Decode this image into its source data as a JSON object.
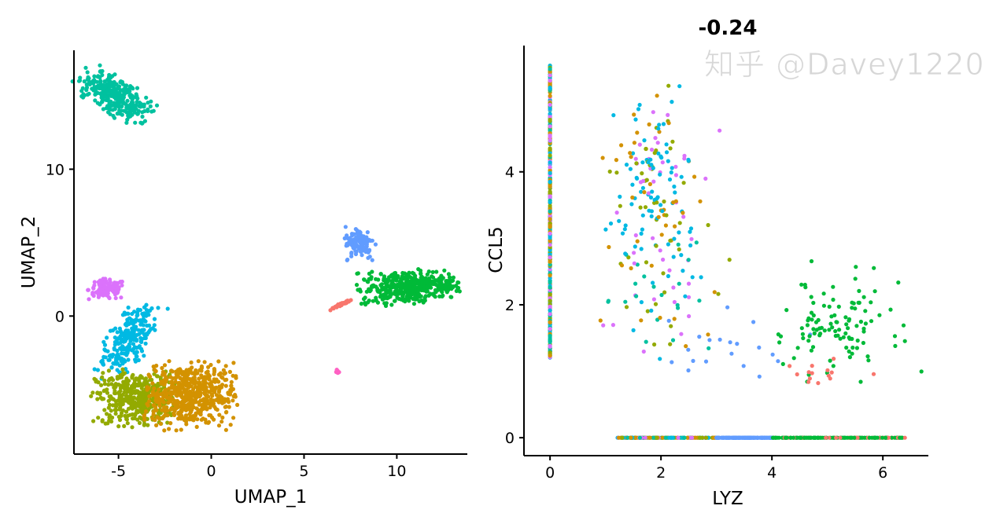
{
  "palette": [
    "#F8766D",
    "#D39200",
    "#93AA00",
    "#00BA38",
    "#00C19F",
    "#00B9E3",
    "#619CFF",
    "#DB72FB",
    "#FF61C3"
  ],
  "watermark": "知乎 @Davey1220",
  "chart_data": [
    {
      "type": "scatter",
      "title": "",
      "xlabel": "UMAP_1",
      "ylabel": "UMAP_2",
      "xlim": [
        -7.4,
        13.8
      ],
      "ylim": [
        -9.4,
        18.1
      ],
      "xticks": [
        -5,
        0,
        5,
        10
      ],
      "yticks": [
        0,
        10
      ],
      "grid": false,
      "legend": "none",
      "clusters": [
        {
          "color": "#00C19F",
          "cx": -5.2,
          "cy": 15.0,
          "sx": 0.55,
          "sy": 1.1,
          "tilt": 0.9,
          "n": 320
        },
        {
          "color": "#DB72FB",
          "cx": -5.6,
          "cy": 1.8,
          "sx": 0.5,
          "sy": 0.35,
          "tilt": 0,
          "n": 120
        },
        {
          "color": "#00B9E3",
          "cx": -4.4,
          "cy": -1.5,
          "sx": 0.55,
          "sy": 1.3,
          "tilt": -0.4,
          "n": 260
        },
        {
          "color": "#93AA00",
          "cx": -4.0,
          "cy": -5.6,
          "sx": 1.1,
          "sy": 0.9,
          "tilt": 0,
          "n": 420
        },
        {
          "color": "#D39200",
          "cx": -1.2,
          "cy": -5.4,
          "sx": 1.2,
          "sy": 1.1,
          "tilt": 0,
          "n": 560
        },
        {
          "color": "#619CFF",
          "cx": 8.0,
          "cy": 5.0,
          "sx": 0.4,
          "sy": 0.55,
          "tilt": 0,
          "n": 110
        },
        {
          "color": "#00BA38",
          "cx": 10.6,
          "cy": 2.0,
          "sx": 1.3,
          "sy": 0.55,
          "tilt": 0.1,
          "n": 420
        },
        {
          "color": "#F8766D",
          "cx": 7.0,
          "cy": 0.8,
          "sx": 0.35,
          "sy": 0.05,
          "tilt": 0.55,
          "n": 35
        },
        {
          "color": "#FF61C3",
          "cx": 6.8,
          "cy": -3.8,
          "sx": 0.05,
          "sy": 0.07,
          "tilt": 0,
          "n": 8
        }
      ]
    },
    {
      "type": "scatter",
      "title": "-0.24",
      "xlabel": "LYZ",
      "ylabel": "CCL5",
      "xlim": [
        -0.47,
        6.82
      ],
      "ylim": [
        -0.27,
        5.9
      ],
      "xticks": [
        0,
        2,
        4,
        6
      ],
      "yticks": [
        0,
        2,
        4
      ],
      "grid": false,
      "legend": "none",
      "groups": [
        {
          "name_hint": "x=0 column",
          "x": 0,
          "ymin": 1.2,
          "ymax": 5.6,
          "colors": [
            "#00B9E3",
            "#93AA00",
            "#D39200",
            "#DB72FB",
            "#00C19F"
          ],
          "n": 400
        },
        {
          "name_hint": "y=0 row",
          "y": 0,
          "segments": [
            {
              "xmin": 1.2,
              "xmax": 3.0,
              "colors": [
                "#93AA00",
                "#D39200",
                "#00C19F",
                "#00B9E3",
                "#DB72FB"
              ]
            },
            {
              "xmin": 3.0,
              "xmax": 4.0,
              "colors": [
                "#619CFF"
              ]
            },
            {
              "xmin": 4.0,
              "xmax": 6.4,
              "colors": [
                "#00BA38",
                "#00BA38",
                "#00BA38",
                "#F8766D"
              ]
            }
          ],
          "n": 500
        },
        {
          "cx": 1.9,
          "cy": 3.9,
          "sx": 0.35,
          "sy": 0.6,
          "colors": [
            "#00B9E3",
            "#00B9E3",
            "#DB72FB",
            "#D39200",
            "#93AA00"
          ],
          "n": 150
        },
        {
          "cx": 2.1,
          "cy": 2.4,
          "sx": 0.5,
          "sy": 0.7,
          "colors": [
            "#93AA00",
            "#D39200",
            "#00B9E3",
            "#00C19F",
            "#DB72FB"
          ],
          "n": 90
        },
        {
          "cx": 3.2,
          "cy": 1.4,
          "sx": 0.5,
          "sy": 0.25,
          "colors": [
            "#619CFF"
          ],
          "n": 20
        },
        {
          "cx": 5.1,
          "cy": 1.6,
          "sx": 0.5,
          "sy": 0.35,
          "colors": [
            "#00BA38"
          ],
          "n": 110
        },
        {
          "cx": 4.9,
          "cy": 1.0,
          "sx": 0.4,
          "sy": 0.12,
          "colors": [
            "#F8766D"
          ],
          "n": 14
        }
      ]
    }
  ]
}
